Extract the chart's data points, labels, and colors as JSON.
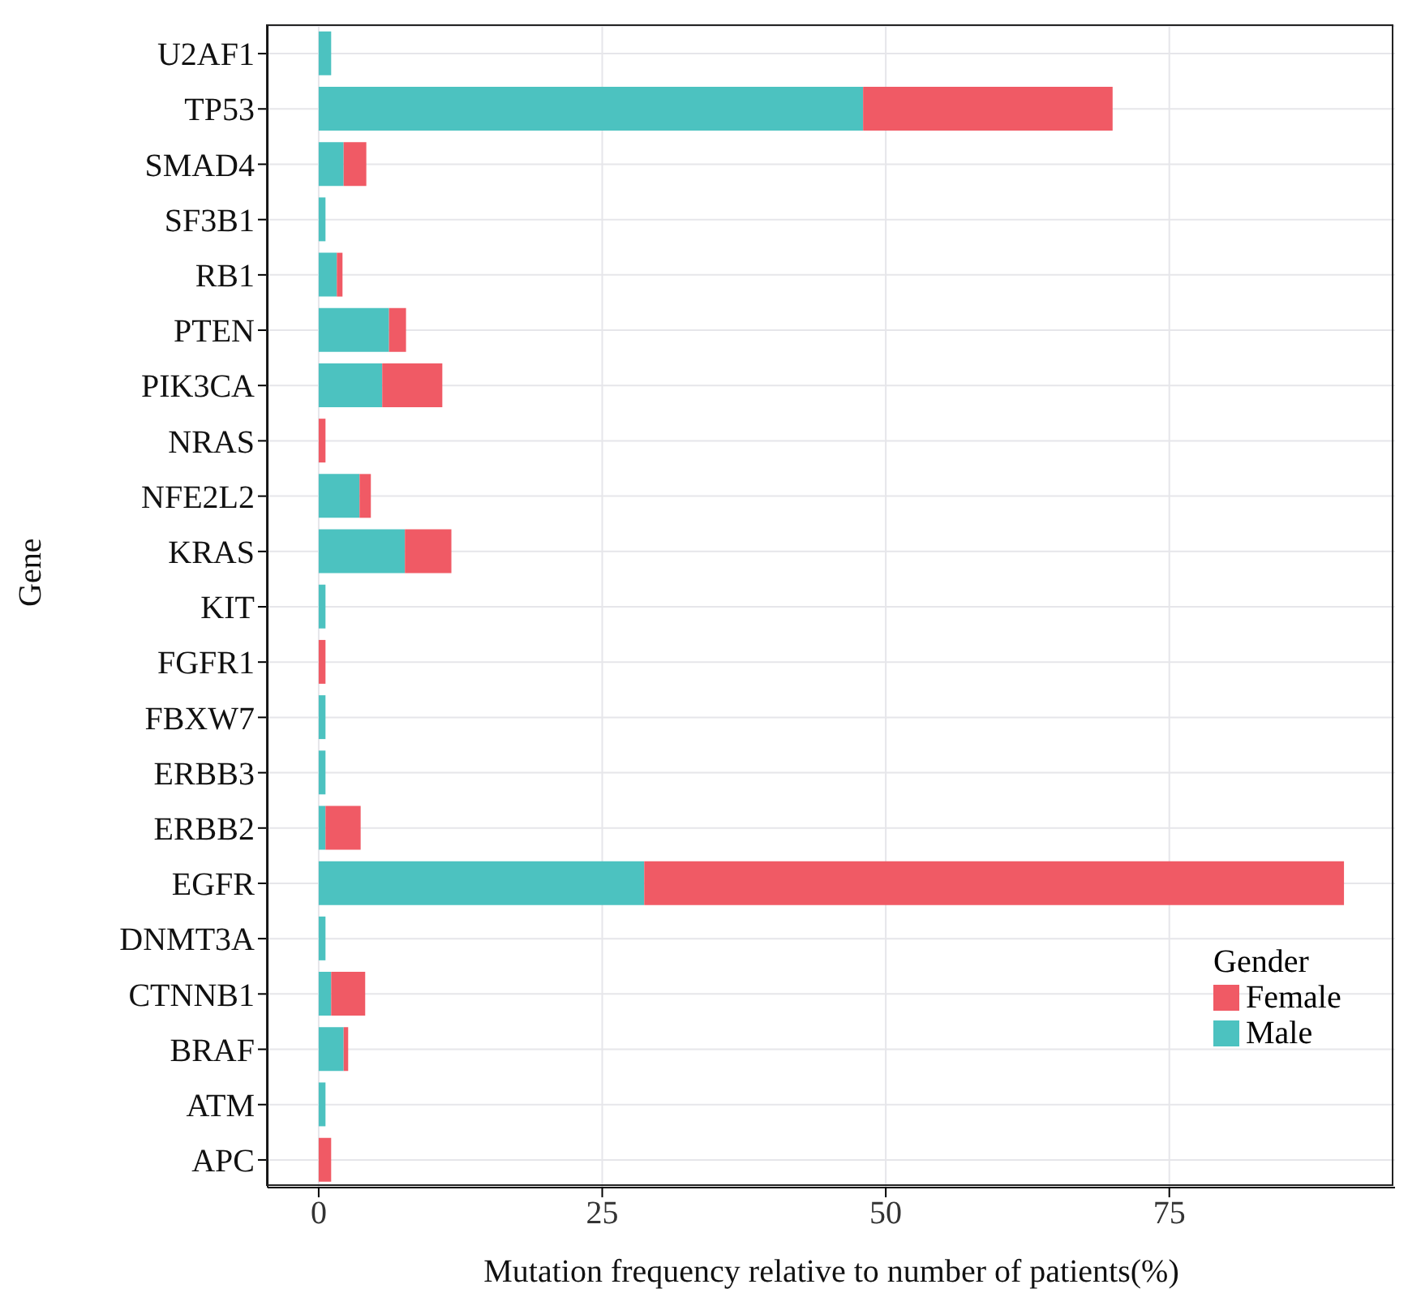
{
  "chart_data": {
    "type": "bar",
    "orientation": "horizontal",
    "stacked": true,
    "xlabel": "Mutation frequency relative to number of patients(%)",
    "ylabel": "Gene",
    "legend_title": "Gender",
    "categories": [
      "U2AF1",
      "TP53",
      "SMAD4",
      "SF3B1",
      "RB1",
      "PTEN",
      "PIK3CA",
      "NRAS",
      "NFE2L2",
      "KRAS",
      "KIT",
      "FGFR1",
      "FBXW7",
      "ERBB3",
      "ERBB2",
      "EGFR",
      "DNMT3A",
      "CTNNB1",
      "BRAF",
      "ATM",
      "APC"
    ],
    "series": [
      {
        "name": "Male",
        "color": "#4cc2c0",
        "values": [
          1.1,
          48.0,
          2.2,
          0.6,
          1.6,
          6.2,
          5.6,
          0,
          3.6,
          7.6,
          0.6,
          0,
          0.6,
          0.6,
          0.6,
          28.7,
          0.6,
          1.1,
          2.2,
          0.6,
          0
        ]
      },
      {
        "name": "Female",
        "color": "#f05a65",
        "values": [
          0,
          22.0,
          2.0,
          0,
          0.5,
          1.5,
          5.3,
          0.6,
          1.0,
          4.1,
          0,
          0.6,
          0,
          0,
          3.1,
          61.7,
          0,
          3.0,
          0.4,
          0,
          1.1
        ]
      }
    ],
    "xlim": [
      -4.5,
      94.9
    ],
    "xticks": [
      0,
      25,
      50,
      75
    ],
    "grid": true,
    "legend": "bottom right"
  }
}
